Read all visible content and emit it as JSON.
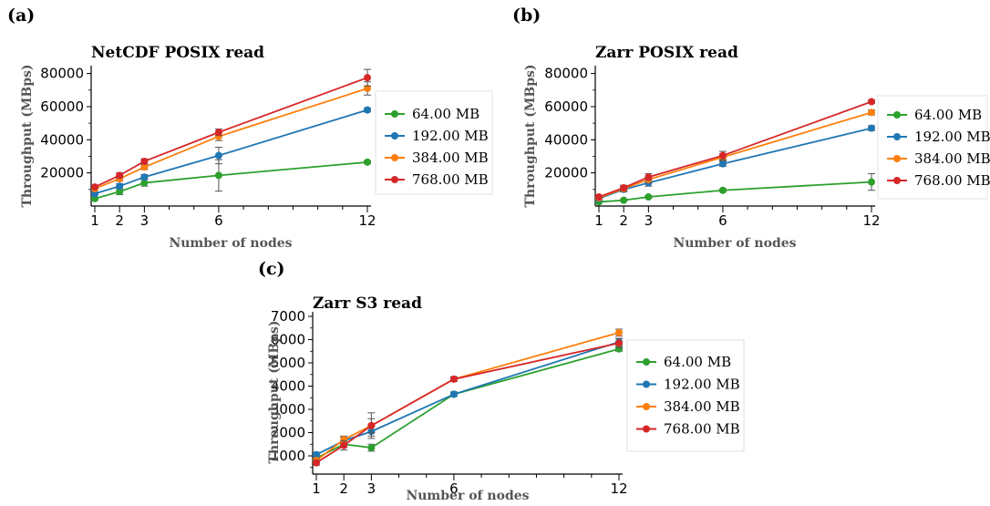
{
  "colors": {
    "64.00 MB": "#2ca02c",
    "192.00 MB": "#1f77b4",
    "384.00 MB": "#ff7f0e",
    "768.00 MB": "#d62728",
    "errorbar": "#555555",
    "axis": "#000000"
  },
  "chart_data": [
    {
      "panel": "(a)",
      "type": "line",
      "title": "NetCDF POSIX read",
      "xlabel": "Number of nodes",
      "ylabel": "Throughput (MBps)",
      "x": [
        1,
        2,
        3,
        6,
        12
      ],
      "xticks": [
        "1",
        "2",
        "3",
        "6",
        "12"
      ],
      "yticks": [
        "20000",
        "40000",
        "60000",
        "80000"
      ],
      "ylim": [
        0,
        85000
      ],
      "legend_position": "right",
      "series": [
        {
          "name": "64.00 MB",
          "values": [
            4500,
            8700,
            14000,
            18500,
            26500
          ],
          "err": [
            800,
            1800,
            2000,
            9500,
            800
          ]
        },
        {
          "name": "192.00 MB",
          "values": [
            7500,
            12000,
            17500,
            30500,
            58000
          ],
          "err": [
            600,
            1500,
            1500,
            5000,
            1200
          ]
        },
        {
          "name": "384.00 MB",
          "values": [
            10500,
            16500,
            23500,
            42000,
            71000
          ],
          "err": [
            600,
            1500,
            1500,
            2500,
            4000
          ]
        },
        {
          "name": "768.00 MB",
          "values": [
            11500,
            18500,
            27000,
            44500,
            77500
          ],
          "err": [
            700,
            1500,
            1500,
            2000,
            5000
          ]
        }
      ]
    },
    {
      "panel": "(b)",
      "type": "line",
      "title": "Zarr POSIX read",
      "xlabel": "Number of nodes",
      "ylabel": "Throughput (MBps)",
      "x": [
        1,
        2,
        3,
        6,
        12
      ],
      "xticks": [
        "1",
        "2",
        "3",
        "6",
        "12"
      ],
      "yticks": [
        "20000",
        "40000",
        "60000",
        "80000"
      ],
      "ylim": [
        0,
        85000
      ],
      "legend_position": "right",
      "series": [
        {
          "name": "64.00 MB",
          "values": [
            2500,
            3500,
            5500,
            9500,
            14500
          ],
          "err": [
            300,
            500,
            700,
            800,
            5000
          ]
        },
        {
          "name": "192.00 MB",
          "values": [
            4500,
            10000,
            14000,
            25500,
            47000
          ],
          "err": [
            500,
            1500,
            2000,
            1500,
            1500
          ]
        },
        {
          "name": "384.00 MB",
          "values": [
            5000,
            10500,
            16000,
            29500,
            56500
          ],
          "err": [
            500,
            1500,
            2000,
            2000,
            1500
          ]
        },
        {
          "name": "768.00 MB",
          "values": [
            5500,
            11000,
            17500,
            30500,
            63000
          ],
          "err": [
            500,
            1500,
            2000,
            2500,
            1000
          ]
        }
      ]
    },
    {
      "panel": "(c)",
      "type": "line",
      "title": "Zarr S3 read",
      "xlabel": "Number of nodes",
      "ylabel": "Throughput (MBps)",
      "x": [
        1,
        2,
        3,
        6,
        12
      ],
      "xticks": [
        "1",
        "2",
        "3",
        "6",
        "12"
      ],
      "yticks": [
        "1000",
        "2000",
        "3000",
        "4000",
        "5000",
        "6000",
        "7000"
      ],
      "ylim": [
        0,
        7000
      ],
      "legend_position": "right",
      "series": [
        {
          "name": "64.00 MB",
          "values": [
            900,
            1500,
            1350,
            3650,
            5600
          ],
          "err": [
            100,
            150,
            150,
            100,
            100
          ]
        },
        {
          "name": "192.00 MB",
          "values": [
            1050,
            1650,
            2050,
            3650,
            5900
          ],
          "err": [
            100,
            150,
            200,
            100,
            150
          ]
        },
        {
          "name": "384.00 MB",
          "values": [
            800,
            1700,
            2300,
            4300,
            6300
          ],
          "err": [
            100,
            150,
            300,
            100,
            150
          ]
        },
        {
          "name": "768.00 MB",
          "values": [
            700,
            1450,
            2300,
            4300,
            5850
          ],
          "err": [
            100,
            200,
            550,
            100,
            200
          ]
        }
      ]
    }
  ]
}
